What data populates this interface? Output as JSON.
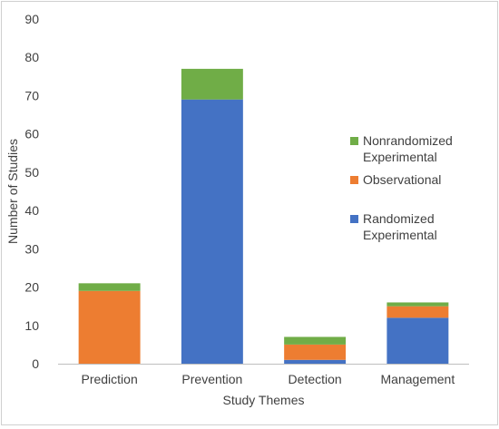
{
  "chart_data": {
    "type": "bar",
    "stacked": true,
    "title": "",
    "xlabel": "Study Themes",
    "ylabel": "Number of Studies",
    "ylim": [
      0,
      90
    ],
    "ytick_step": 10,
    "grid": false,
    "legend_position": "right",
    "categories": [
      "Prediction",
      "Prevention",
      "Detection",
      "Management"
    ],
    "series": [
      {
        "name": "Randomized Experimental",
        "color": "#4472c4",
        "values": [
          0,
          69,
          1,
          12
        ]
      },
      {
        "name": "Observational",
        "color": "#ed7d31",
        "values": [
          19,
          0,
          4,
          3
        ]
      },
      {
        "name": "Nonrandomized Experimental",
        "color": "#70ad47",
        "values": [
          2,
          8,
          2,
          1
        ]
      }
    ],
    "legend": [
      {
        "lines": [
          "Nonrandomized",
          "Experimental"
        ],
        "color": "#70ad47"
      },
      {
        "lines": [
          "Observational"
        ],
        "color": "#ed7d31"
      },
      {
        "lines": [
          "Randomized",
          "Experimental"
        ],
        "color": "#4472c4"
      }
    ]
  }
}
